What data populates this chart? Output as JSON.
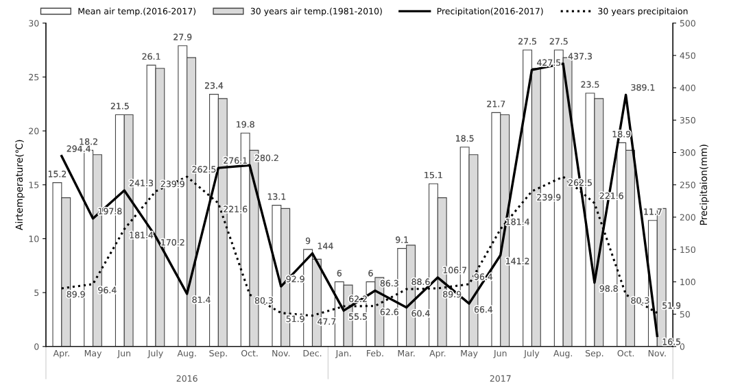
{
  "chart_data": {
    "type": "bar",
    "ylabel": "Airtemperature(℃)",
    "y2label": "Precipitaion(mm)",
    "categories": [
      "Apr.",
      "May",
      "Jun",
      "July",
      "Aug.",
      "Sep.",
      "Oct.",
      "Nov.",
      "Dec.",
      "Jan.",
      "Feb.",
      "Mar.",
      "Apr.",
      "May",
      "Jun",
      "July",
      "Aug.",
      "Sep.",
      "Oct.",
      "Nov."
    ],
    "annotations": [
      "2016",
      "2017"
    ],
    "ylim": [
      0,
      30
    ],
    "yticks": [
      0,
      5,
      10,
      15,
      20,
      25,
      30
    ],
    "y2lim": [
      0,
      500
    ],
    "y2ticks": [
      0,
      50,
      100,
      150,
      200,
      250,
      300,
      350,
      400,
      450,
      500
    ],
    "legend": "top",
    "grid": false,
    "series": [
      {
        "name": "Mean air temp.(2016-2017)",
        "type": "bar",
        "color": "#ffffff",
        "values": [
          15.2,
          18.2,
          21.5,
          26.1,
          27.9,
          23.4,
          19.8,
          13.1,
          9,
          6,
          6,
          9.1,
          15.1,
          18.5,
          21.7,
          27.5,
          27.5,
          23.5,
          18.9,
          11.7
        ],
        "data_labels": true
      },
      {
        "name": "30 years air temp.(1981-2010)",
        "type": "bar",
        "color": "#d9d9d9",
        "values": [
          13.8,
          17.8,
          21.5,
          25.8,
          26.8,
          23.0,
          18.2,
          12.8,
          8.1,
          5.7,
          6.4,
          9.4,
          13.8,
          17.8,
          21.5,
          25.8,
          26.8,
          23.0,
          18.2,
          12.8
        ]
      },
      {
        "name": "Precipitation(2016-2017)",
        "type": "line",
        "axis": "y2",
        "color": "#000000",
        "line_style": "solid",
        "values": [
          294.4,
          197.8,
          241.3,
          170.2,
          81.4,
          276.1,
          280.2,
          92.9,
          144,
          55.5,
          86.3,
          60.4,
          106.7,
          66.4,
          141.2,
          427.5,
          437.3,
          98.8,
          389.1,
          16.5
        ],
        "data_labels": true
      },
      {
        "name": "30 years precipitaion",
        "type": "line",
        "axis": "y2",
        "color": "#000000",
        "line_style": "dotted",
        "values": [
          89.9,
          96.4,
          181.4,
          239.9,
          262.5,
          221.6,
          80.3,
          51.9,
          47.7,
          62.2,
          62.6,
          88.6,
          89.9,
          96.4,
          181.4,
          239.9,
          262.5,
          221.6,
          80.3,
          51.9
        ],
        "data_labels": true
      }
    ]
  }
}
